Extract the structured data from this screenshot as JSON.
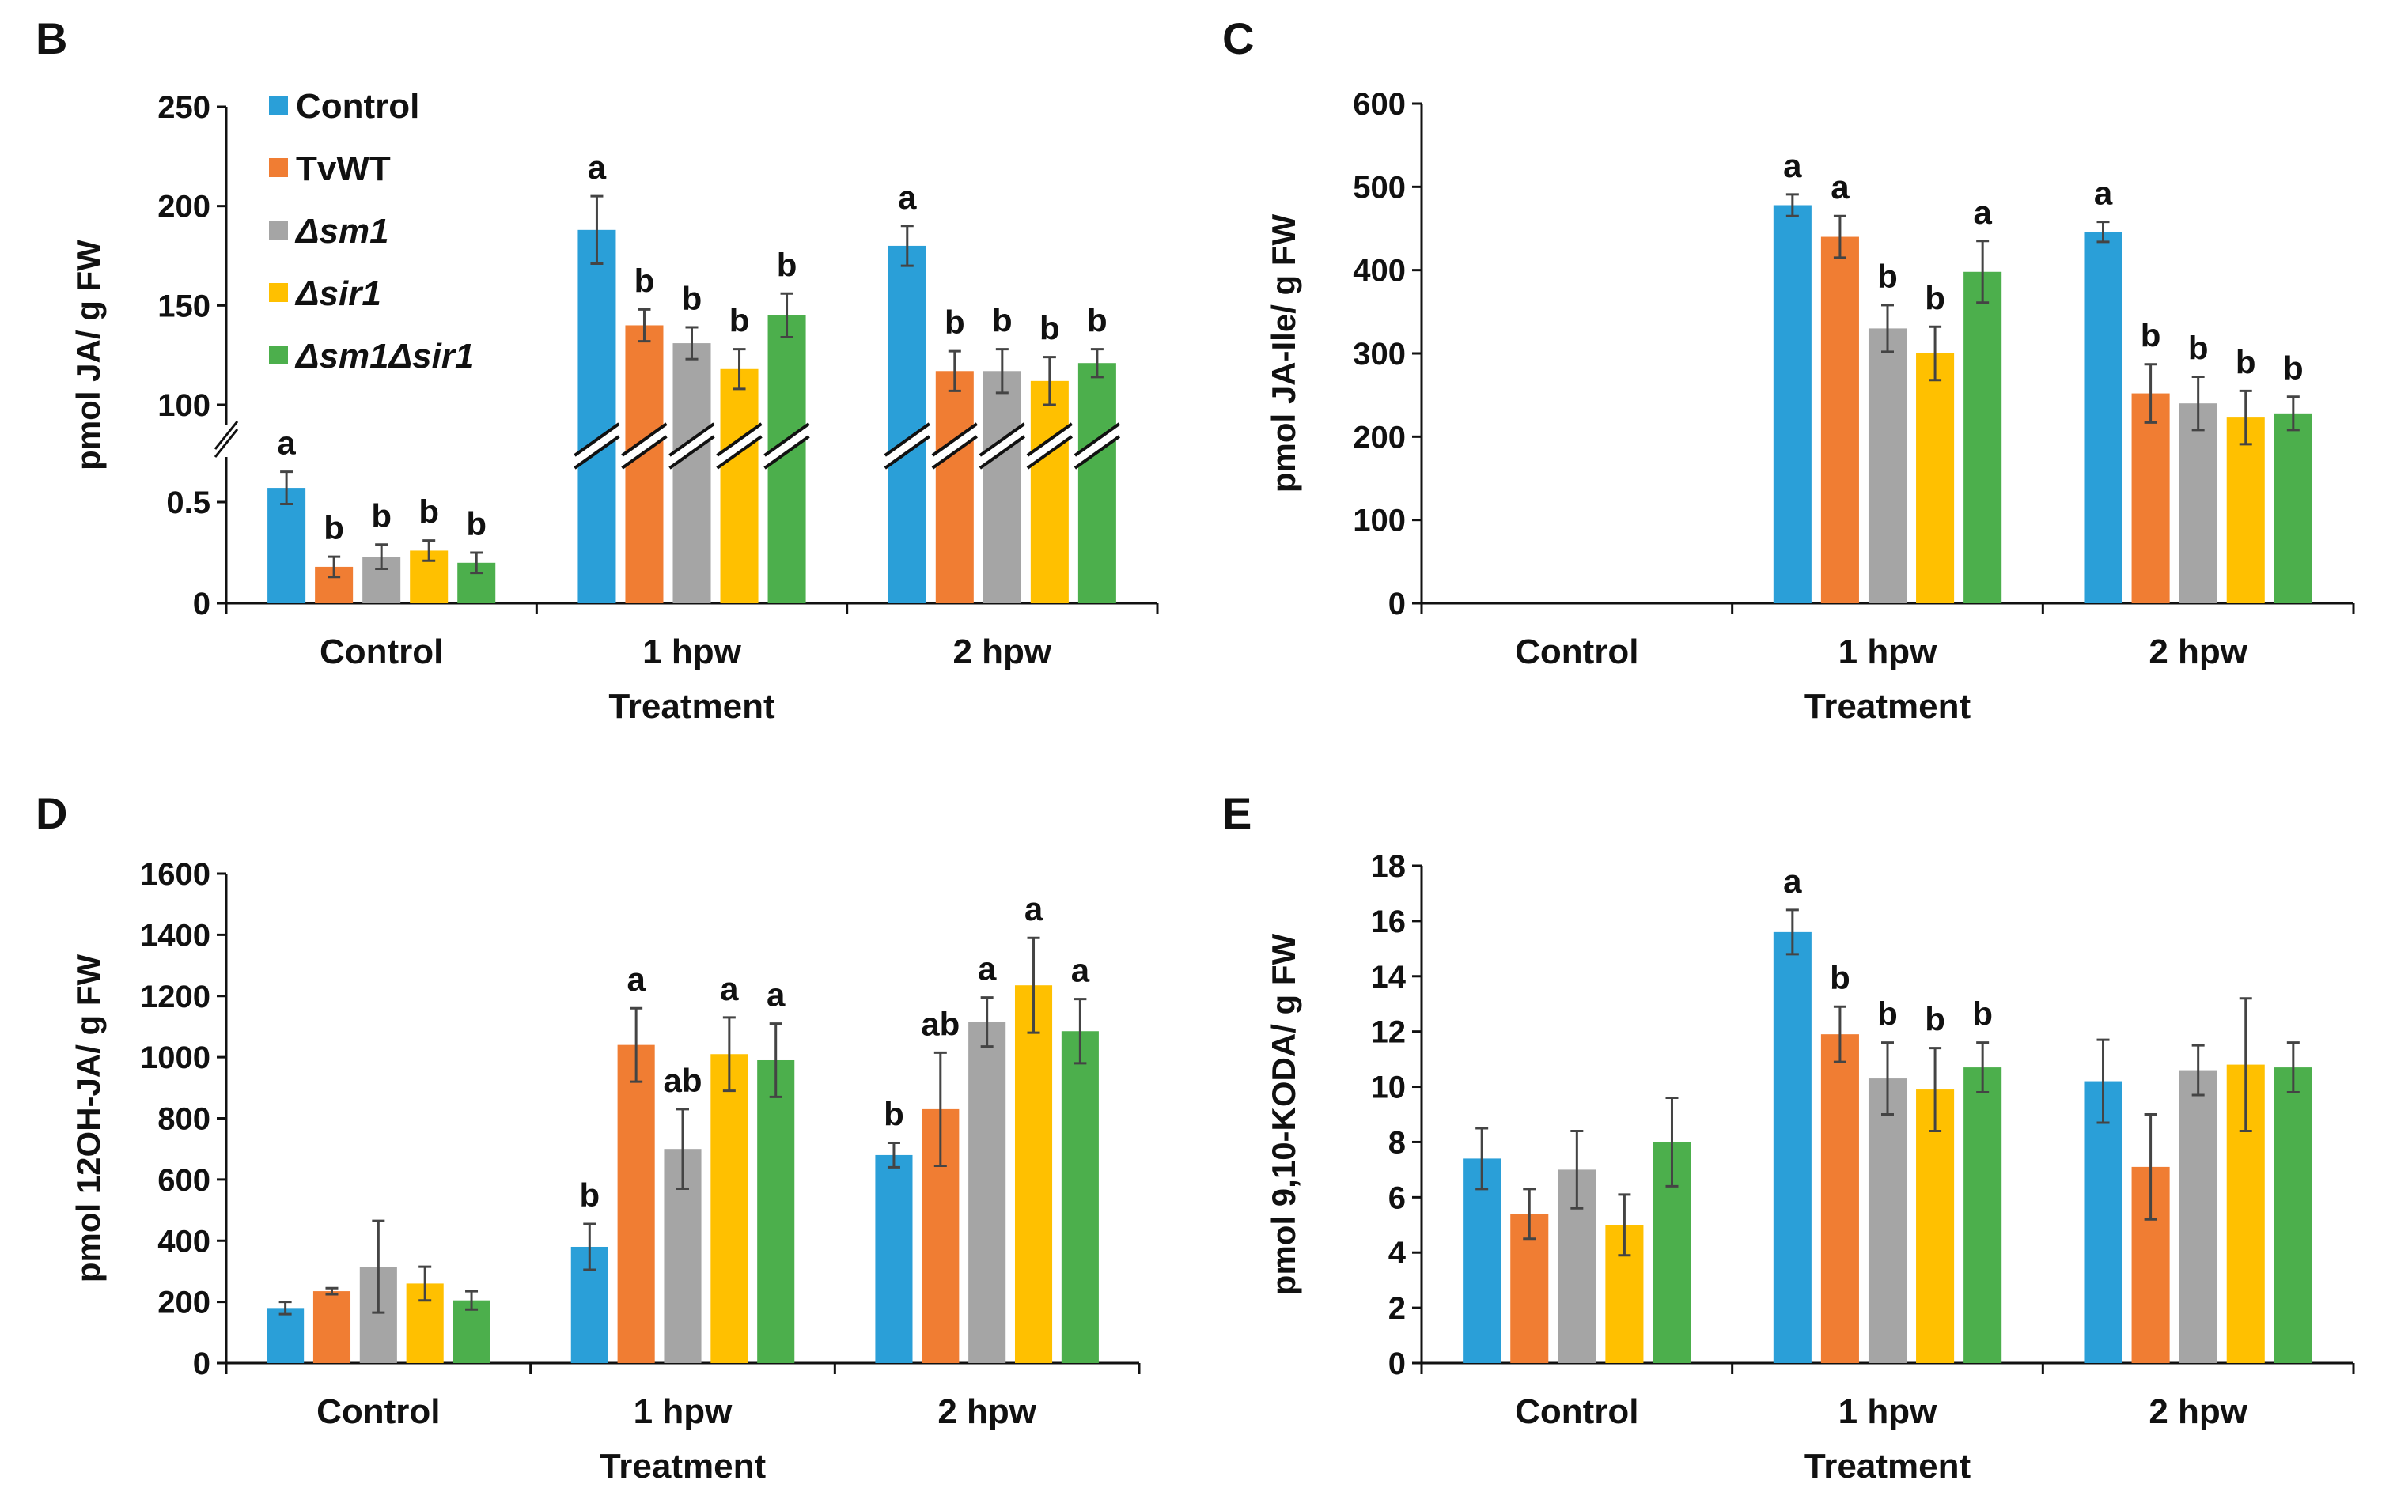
{
  "colors": {
    "Control": "#2a9fd8",
    "TvWT": "#f07d33",
    "Δsm1": "#a5a5a5",
    "Δsir1": "#ffc000",
    "Δsm1Δsir1": "#4caf4c"
  },
  "legend": {
    "position": "top-left of panel B",
    "items": [
      "Control",
      "TvWT",
      "Δsm1",
      "Δsir1",
      "Δsm1Δsir1"
    ],
    "italic": [
      false,
      false,
      true,
      true,
      true
    ]
  },
  "chart_data": [
    {
      "panel": "B",
      "type": "bar",
      "xlabel": "Treatment",
      "ylabel": "pmol JA/ g FW",
      "categories": [
        "Control",
        "1 hpw",
        "2 hpw"
      ],
      "broken_axis": true,
      "ylim_lower": [
        0,
        0.75
      ],
      "ylim_upper": [
        100,
        250
      ],
      "yticks": [
        "0",
        "0.5",
        "100",
        "150",
        "200",
        "250"
      ],
      "series": [
        {
          "name": "Control",
          "values": [
            0.57,
            188,
            180
          ],
          "errors": [
            0.08,
            17,
            10
          ],
          "letters": [
            "a",
            "a",
            "a"
          ]
        },
        {
          "name": "TvWT",
          "values": [
            0.18,
            140,
            117
          ],
          "errors": [
            0.05,
            8,
            10
          ],
          "letters": [
            "b",
            "b",
            "b"
          ]
        },
        {
          "name": "Δsm1",
          "values": [
            0.23,
            131,
            117
          ],
          "errors": [
            0.06,
            8,
            11
          ],
          "letters": [
            "b",
            "b",
            "b"
          ]
        },
        {
          "name": "Δsir1",
          "values": [
            0.26,
            118,
            112
          ],
          "errors": [
            0.05,
            10,
            12
          ],
          "letters": [
            "b",
            "b",
            "b"
          ]
        },
        {
          "name": "Δsm1Δsir1",
          "values": [
            0.2,
            145,
            121
          ],
          "errors": [
            0.05,
            11,
            7
          ],
          "letters": [
            "b",
            "b",
            "b"
          ]
        }
      ]
    },
    {
      "panel": "C",
      "type": "bar",
      "xlabel": "Treatment",
      "ylabel": "pmol JA-Ile/ g FW",
      "categories": [
        "Control",
        "1 hpw",
        "2 hpw"
      ],
      "ylim": [
        0,
        600
      ],
      "yticks": [
        "0",
        "100",
        "200",
        "300",
        "400",
        "500",
        "600"
      ],
      "series": [
        {
          "name": "Control",
          "values": [
            null,
            478,
            446
          ],
          "errors": [
            null,
            13,
            12
          ],
          "letters": [
            "",
            "a",
            "a"
          ]
        },
        {
          "name": "TvWT",
          "values": [
            null,
            440,
            252
          ],
          "errors": [
            null,
            25,
            35
          ],
          "letters": [
            "",
            "a",
            "b"
          ]
        },
        {
          "name": "Δsm1",
          "values": [
            null,
            330,
            240
          ],
          "errors": [
            null,
            28,
            32
          ],
          "letters": [
            "",
            "b",
            "b"
          ]
        },
        {
          "name": "Δsir1",
          "values": [
            null,
            300,
            223
          ],
          "errors": [
            null,
            32,
            32
          ],
          "letters": [
            "",
            "b",
            "b"
          ]
        },
        {
          "name": "Δsm1Δsir1",
          "values": [
            null,
            398,
            228
          ],
          "errors": [
            null,
            37,
            20
          ],
          "letters": [
            "",
            "a",
            "b"
          ]
        }
      ]
    },
    {
      "panel": "D",
      "type": "bar",
      "xlabel": "Treatment",
      "ylabel": "pmol 12OH-JA/ g FW",
      "categories": [
        "Control",
        "1 hpw",
        "2 hpw"
      ],
      "ylim": [
        0,
        1600
      ],
      "yticks": [
        "0",
        "200",
        "400",
        "600",
        "800",
        "1000",
        "1200",
        "1400",
        "1600"
      ],
      "series": [
        {
          "name": "Control",
          "values": [
            180,
            380,
            680
          ],
          "errors": [
            20,
            75,
            40
          ],
          "letters": [
            "",
            "b",
            "b"
          ]
        },
        {
          "name": "TvWT",
          "values": [
            235,
            1040,
            830
          ],
          "errors": [
            10,
            120,
            185
          ],
          "letters": [
            "",
            "a",
            "ab"
          ]
        },
        {
          "name": "Δsm1",
          "values": [
            315,
            700,
            1115
          ],
          "errors": [
            150,
            130,
            80
          ],
          "letters": [
            "",
            "ab",
            "a"
          ]
        },
        {
          "name": "Δsir1",
          "values": [
            260,
            1010,
            1235
          ],
          "errors": [
            55,
            120,
            155
          ],
          "letters": [
            "",
            "a",
            "a"
          ]
        },
        {
          "name": "Δsm1Δsir1",
          "values": [
            205,
            990,
            1085
          ],
          "errors": [
            30,
            120,
            105
          ],
          "letters": [
            "",
            "a",
            "a"
          ]
        }
      ]
    },
    {
      "panel": "E",
      "type": "bar",
      "xlabel": "Treatment",
      "ylabel": "pmol 9,10-KODA/ g FW",
      "categories": [
        "Control",
        "1 hpw",
        "2 hpw"
      ],
      "ylim": [
        0,
        18
      ],
      "yticks": [
        "0",
        "2",
        "4",
        "6",
        "8",
        "10",
        "12",
        "14",
        "16",
        "18"
      ],
      "series": [
        {
          "name": "Control",
          "values": [
            7.4,
            15.6,
            10.2
          ],
          "errors": [
            1.1,
            0.8,
            1.5
          ],
          "letters": [
            "",
            "a",
            ""
          ]
        },
        {
          "name": "TvWT",
          "values": [
            5.4,
            11.9,
            7.1
          ],
          "errors": [
            0.9,
            1.0,
            1.9
          ],
          "letters": [
            "",
            "b",
            ""
          ]
        },
        {
          "name": "Δsm1",
          "values": [
            7.0,
            10.3,
            10.6
          ],
          "errors": [
            1.4,
            1.3,
            0.9
          ],
          "letters": [
            "",
            "b",
            ""
          ]
        },
        {
          "name": "Δsir1",
          "values": [
            5.0,
            9.9,
            10.8
          ],
          "errors": [
            1.1,
            1.5,
            2.4
          ],
          "letters": [
            "",
            "b",
            ""
          ]
        },
        {
          "name": "Δsm1Δsir1",
          "values": [
            8.0,
            10.7,
            10.7
          ],
          "errors": [
            1.6,
            0.9,
            0.9
          ],
          "letters": [
            "",
            "b",
            ""
          ]
        }
      ]
    }
  ]
}
